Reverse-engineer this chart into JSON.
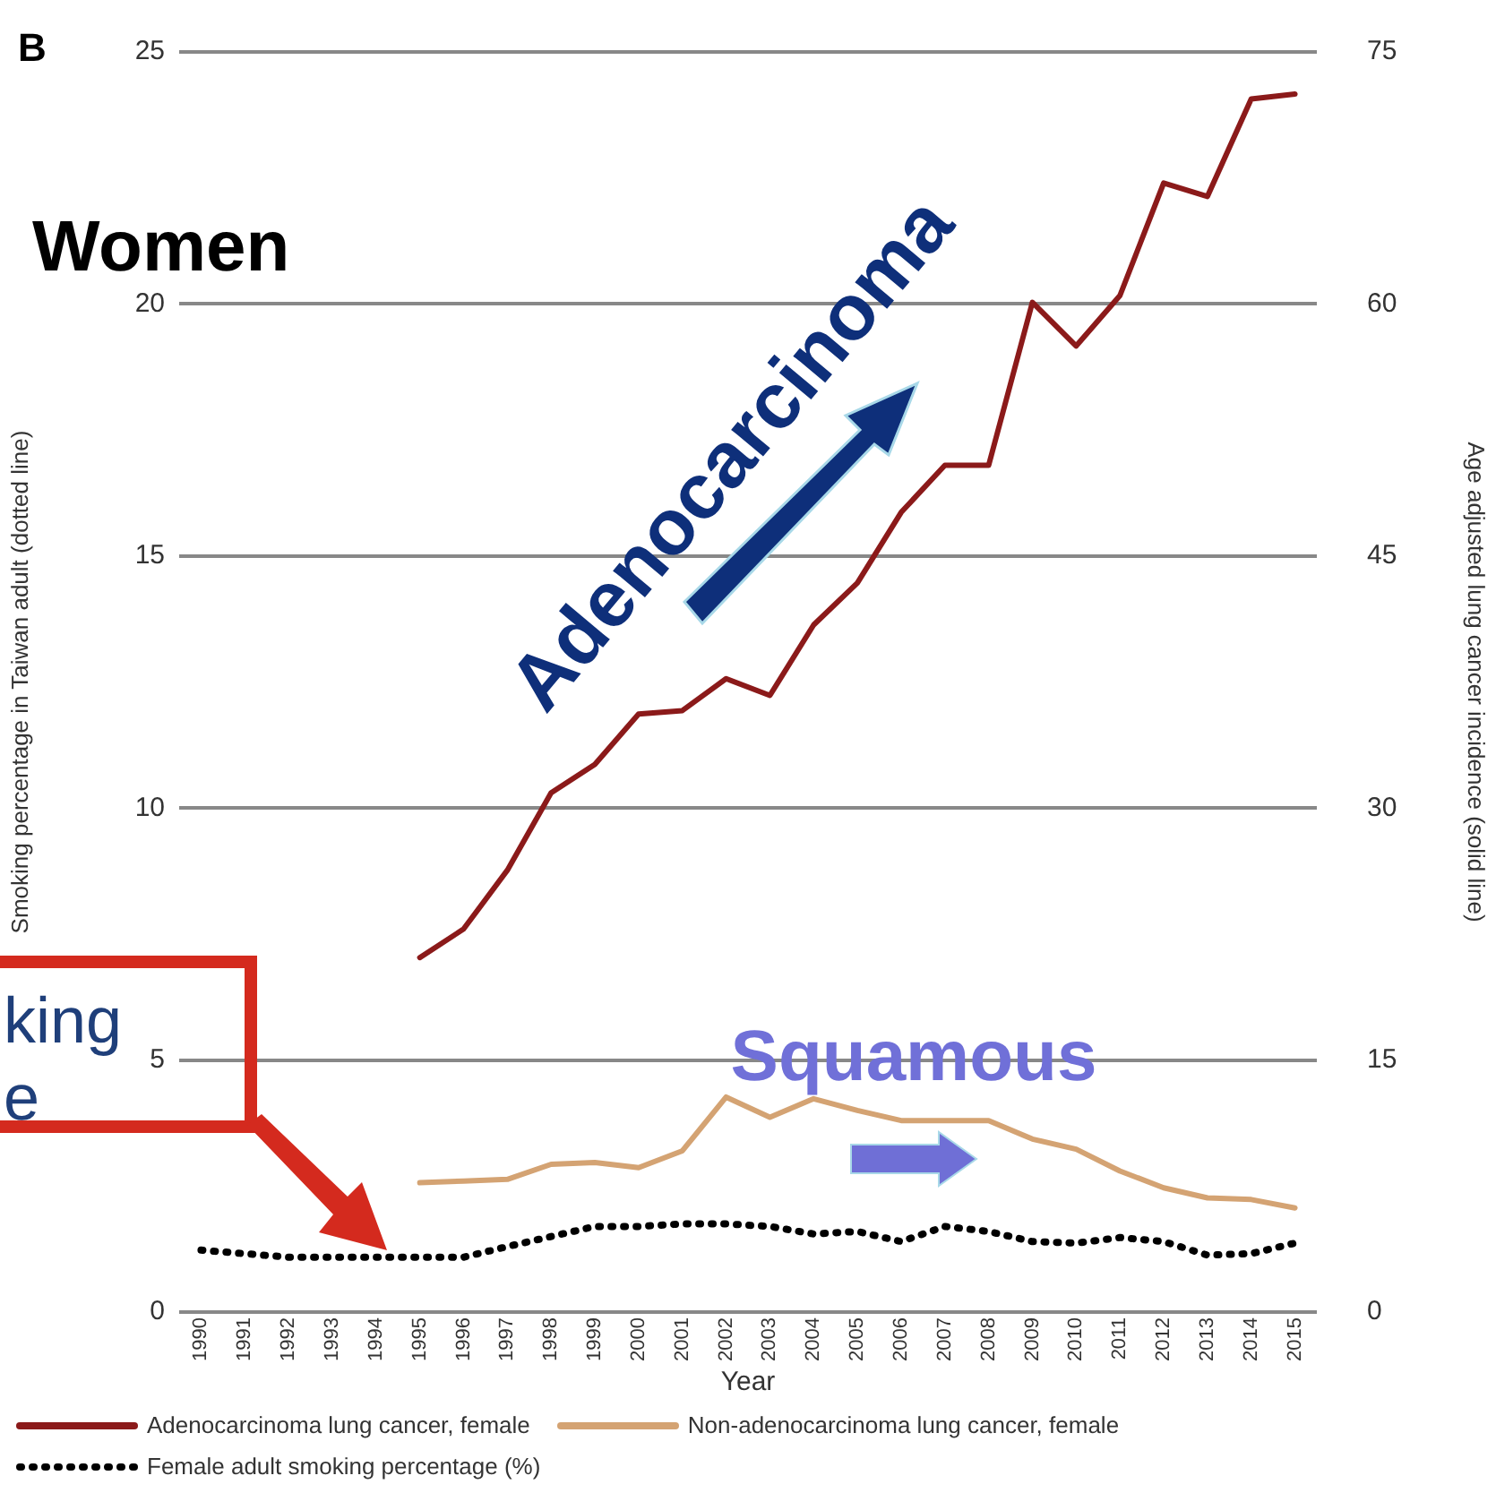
{
  "chart_data": {
    "type": "line",
    "xlabel": "Year",
    "ylabel": "Smoking percentage in Taiwan adult (dotted line)",
    "y2label": "Age adjusted lung cancer incidence (solid line)",
    "categories": [
      "1990",
      "1991",
      "1992",
      "1993",
      "1994",
      "1995",
      "1996",
      "1997",
      "1998",
      "1999",
      "2000",
      "2001",
      "2002",
      "2003",
      "2004",
      "2005",
      "2006",
      "2007",
      "2008",
      "2009",
      "2010",
      "2011",
      "2012",
      "2013",
      "2014",
      "2015"
    ],
    "series": [
      {
        "name": "Adenocarcinoma lung cancer, female",
        "color": "#8b1a1a",
        "axis": "y2",
        "line_style": "solid",
        "values": [
          null,
          null,
          null,
          null,
          null,
          21.1,
          22.8,
          26.3,
          30.9,
          32.6,
          35.6,
          35.8,
          37.7,
          36.7,
          40.9,
          43.4,
          47.6,
          50.4,
          50.4,
          60.1,
          57.5,
          60.5,
          67.2,
          66.4,
          72.2,
          72.5
        ]
      },
      {
        "name": "Non-adenocarcinoma lung cancer, female",
        "color": "#d4a373",
        "axis": "y2",
        "line_style": "solid",
        "values": [
          null,
          null,
          null,
          null,
          null,
          7.7,
          7.8,
          7.9,
          8.8,
          8.9,
          8.6,
          9.6,
          12.8,
          11.6,
          12.7,
          12.0,
          11.4,
          11.4,
          11.4,
          10.3,
          9.7,
          8.4,
          7.4,
          6.8,
          6.7,
          6.2
        ]
      },
      {
        "name": "Female adult smoking percentage (%)",
        "color": "#000000",
        "axis": "y",
        "line_style": "dotted",
        "values": [
          1.23,
          1.16,
          1.09,
          1.09,
          1.09,
          1.09,
          1.09,
          1.3,
          1.5,
          1.7,
          1.7,
          1.75,
          1.75,
          1.7,
          1.55,
          1.6,
          1.4,
          1.7,
          1.6,
          1.4,
          1.37,
          1.48,
          1.4,
          1.13,
          1.16,
          1.37
        ]
      }
    ],
    "ylim": [
      0,
      25
    ],
    "yticks": [
      0,
      5,
      10,
      15,
      20,
      25
    ],
    "y2lim": [
      0,
      75
    ],
    "y2ticks": [
      0,
      15,
      30,
      45,
      60,
      75
    ],
    "grid": "y",
    "legend": "bottom",
    "marker": "none",
    "annotations": [
      "B",
      "Women",
      "Adenocarcinoma",
      "Squamous",
      "king",
      "e"
    ]
  }
}
